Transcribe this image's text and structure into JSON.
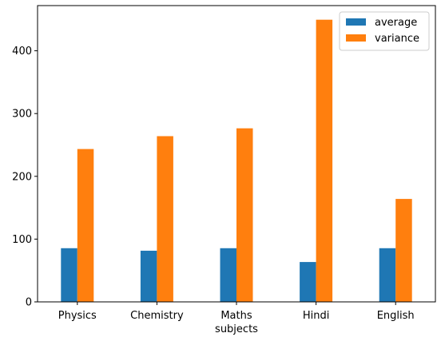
{
  "chart_data": {
    "type": "bar",
    "categories": [
      "Physics",
      "Chemistry",
      "Maths",
      "Hindi",
      "English"
    ],
    "series": [
      {
        "name": "average",
        "values": [
          85.5,
          81.5,
          85.5,
          63.5,
          85.5
        ],
        "color": "#1f77b4"
      },
      {
        "name": "variance",
        "values": [
          243.5,
          264,
          276.5,
          449.5,
          164
        ],
        "color": "#ff7f0e"
      }
    ],
    "title": "",
    "xlabel": "subjects",
    "ylabel": "",
    "ylim": [
      0,
      472
    ],
    "yticks": [
      0,
      100,
      200,
      300,
      400
    ],
    "grid": false,
    "legend_position": "top-right"
  }
}
